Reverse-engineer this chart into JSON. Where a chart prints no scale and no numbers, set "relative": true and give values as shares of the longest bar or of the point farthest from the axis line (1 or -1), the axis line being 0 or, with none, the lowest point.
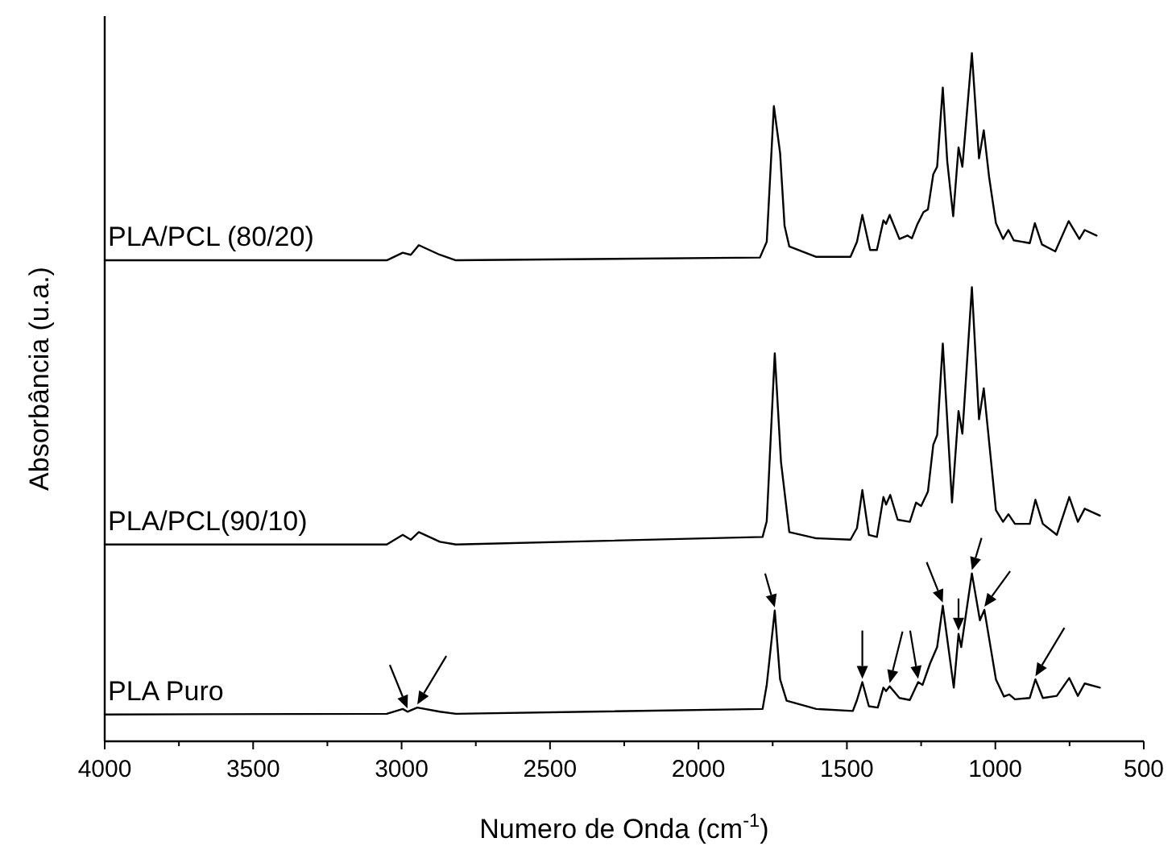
{
  "chart_data": {
    "type": "line",
    "relative": true,
    "xlabel": "Numero de Onda (cm$^{-1}$)",
    "ylabel": "Absorbância (u.a.)",
    "xlim": [
      4000,
      500
    ],
    "xticks": [
      4000,
      {
        "value": 3750,
        "label": null
      },
      3500,
      {
        "value": 3250,
        "label": null
      },
      3000,
      {
        "value": 2750,
        "label": null
      },
      2500,
      {
        "value": 2250,
        "label": null
      },
      2000,
      {
        "value": 1750,
        "label": null
      },
      1500,
      {
        "value": 1250,
        "label": null
      },
      1000,
      {
        "value": 750,
        "label": null
      },
      500
    ],
    "grid": false,
    "series": [
      {
        "name": "PLA/PCL (80/20)",
        "color": "#000000",
        "x": [
          4000,
          3050,
          2996,
          2969,
          2942,
          2871,
          2817,
          1793,
          1770,
          1746,
          1725,
          1710,
          1694,
          1603,
          1488,
          1466,
          1448,
          1422,
          1399,
          1377,
          1368,
          1356,
          1323,
          1296,
          1281,
          1263,
          1242,
          1227,
          1209,
          1196,
          1177,
          1162,
          1142,
          1124,
          1111,
          1079,
          1055,
          1039,
          1021,
          998,
          974,
          956,
          938,
          884,
          867,
          843,
          798,
          753,
          717,
          699,
          659
        ],
        "values": [
          0.699,
          0.699,
          0.71,
          0.707,
          0.721,
          0.707,
          0.699,
          0.703,
          0.726,
          0.923,
          0.855,
          0.749,
          0.719,
          0.704,
          0.704,
          0.726,
          0.765,
          0.714,
          0.714,
          0.757,
          0.752,
          0.765,
          0.73,
          0.735,
          0.731,
          0.751,
          0.769,
          0.773,
          0.824,
          0.835,
          0.95,
          0.843,
          0.763,
          0.863,
          0.835,
          1.0,
          0.847,
          0.888,
          0.82,
          0.753,
          0.73,
          0.743,
          0.728,
          0.724,
          0.753,
          0.722,
          0.712,
          0.756,
          0.73,
          0.743,
          0.735
        ]
      },
      {
        "name": "PLA/PCL(90/10)",
        "color": "#000000",
        "x": [
          4000,
          3050,
          2996,
          2969,
          2942,
          2871,
          2817,
          1784,
          1770,
          1743,
          1722,
          1694,
          1603,
          1488,
          1466,
          1448,
          1426,
          1399,
          1377,
          1368,
          1354,
          1329,
          1288,
          1267,
          1250,
          1227,
          1209,
          1196,
          1177,
          1146,
          1124,
          1111,
          1079,
          1055,
          1039,
          998,
          974,
          956,
          934,
          884,
          865,
          840,
          793,
          751,
          722,
          699,
          648
        ],
        "values": [
          0.286,
          0.286,
          0.3,
          0.293,
          0.304,
          0.29,
          0.286,
          0.297,
          0.32,
          0.564,
          0.406,
          0.304,
          0.295,
          0.293,
          0.31,
          0.365,
          0.3,
          0.297,
          0.355,
          0.344,
          0.358,
          0.322,
          0.319,
          0.347,
          0.342,
          0.363,
          0.431,
          0.445,
          0.578,
          0.347,
          0.48,
          0.447,
          0.66,
          0.468,
          0.513,
          0.336,
          0.319,
          0.33,
          0.316,
          0.316,
          0.351,
          0.316,
          0.3,
          0.355,
          0.319,
          0.338,
          0.328
        ]
      },
      {
        "name": "PLA Puro",
        "color": "#000000",
        "x": [
          4000,
          3050,
          2996,
          2980,
          2947,
          2871,
          2817,
          1784,
          1770,
          1743,
          1725,
          1703,
          1603,
          1480,
          1466,
          1448,
          1426,
          1396,
          1377,
          1368,
          1356,
          1323,
          1288,
          1260,
          1245,
          1220,
          1196,
          1177,
          1140,
          1124,
          1115,
          1079,
          1052,
          1037,
          998,
          971,
          953,
          934,
          884,
          865,
          840,
          793,
          751,
          722,
          699,
          648
        ],
        "values": [
          0.039,
          0.04,
          0.047,
          0.043,
          0.049,
          0.043,
          0.04,
          0.047,
          0.082,
          0.19,
          0.09,
          0.059,
          0.047,
          0.044,
          0.06,
          0.086,
          0.051,
          0.049,
          0.078,
          0.073,
          0.08,
          0.063,
          0.06,
          0.086,
          0.082,
          0.113,
          0.137,
          0.197,
          0.078,
          0.156,
          0.137,
          0.244,
          0.176,
          0.191,
          0.09,
          0.065,
          0.068,
          0.061,
          0.063,
          0.09,
          0.063,
          0.066,
          0.092,
          0.066,
          0.084,
          0.078
        ]
      }
    ]
  }
}
